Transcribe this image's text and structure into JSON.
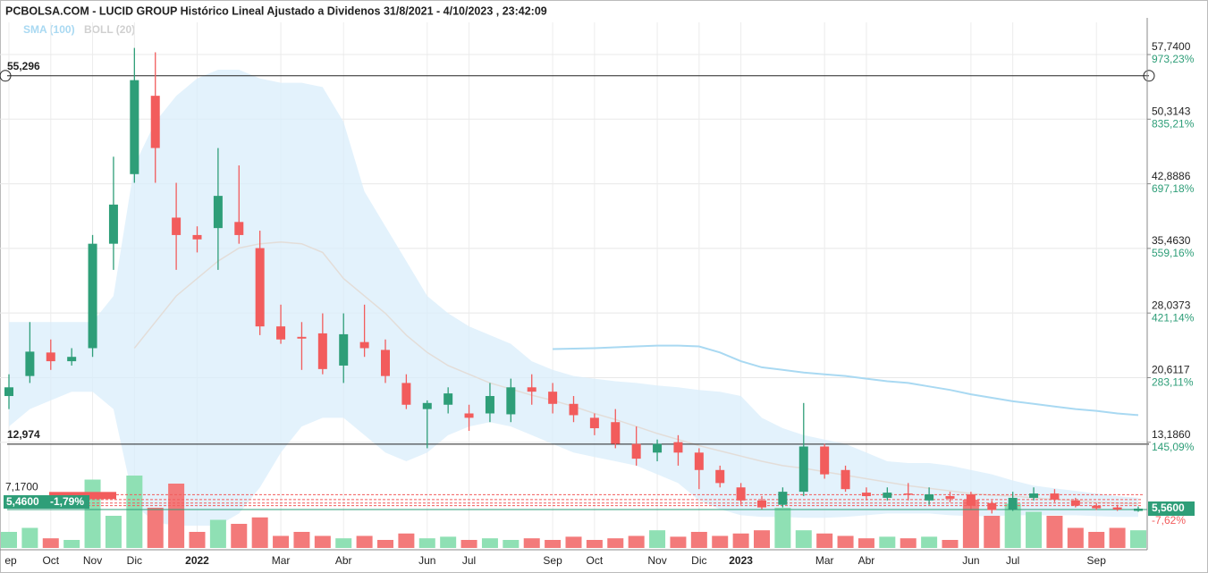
{
  "chart_data": {
    "type": "candlestick",
    "title": "PCBOLSA.COM - LUCID GROUP Histórico Lineal Ajustado a Dividenos 31/8/2021 - 4/10/2023 , 23:42:09",
    "categories": [
      "ep",
      null,
      "Oct",
      null,
      "Nov",
      null,
      "Dic",
      null,
      null,
      "2022",
      null,
      null,
      null,
      "Mar",
      null,
      null,
      "Abr",
      null,
      null,
      null,
      "Jun",
      null,
      "Jul",
      null,
      null,
      null,
      "Sep",
      null,
      "Oct",
      null,
      null,
      "Nov",
      null,
      "Dic",
      null,
      "2023",
      null,
      null,
      null,
      "Mar",
      null,
      "Abr",
      null,
      null,
      null,
      null,
      "Jun",
      null,
      "Jul",
      null,
      null,
      null,
      "Sep",
      null,
      null
    ],
    "open": [
      18.5,
      20.8,
      23.5,
      22.5,
      24,
      36,
      44,
      53,
      39,
      37,
      37.8,
      38.5,
      35.5,
      26.5,
      25.3,
      25.7,
      22,
      24.7,
      23.8,
      20,
      17,
      17.5,
      16.5,
      16.5,
      16.4,
      19.5,
      19,
      17.6,
      16,
      15.5,
      13,
      12,
      13.2,
      12,
      10,
      8,
      6.5,
      6,
      7.5,
      12.7,
      10,
      7.4,
      6.8,
      7.3,
      6.5,
      7,
      7.2,
      6.2,
      5.5,
      6.8,
      7.3,
      6.5,
      5.9,
      5.7,
      5.3
    ],
    "high": [
      21,
      27,
      25,
      24,
      37,
      46,
      58.5,
      58,
      43,
      38,
      47,
      45,
      37.5,
      29,
      27,
      28,
      28,
      29,
      25,
      21,
      18,
      19.5,
      17.5,
      20,
      20.5,
      21,
      20,
      18.5,
      16.5,
      17,
      15,
      13.5,
      14,
      12.5,
      10.5,
      8.5,
      7,
      8,
      17.7,
      13,
      10.5,
      8,
      8,
      8.5,
      8,
      7.5,
      7.5,
      6.5,
      7.5,
      8,
      7.8,
      6.8,
      6.2,
      6,
      5.8
    ],
    "low": [
      17,
      20,
      21.5,
      22,
      23,
      33,
      43,
      43,
      33,
      35,
      33,
      36,
      25.5,
      24.5,
      21.5,
      21,
      20,
      23,
      20,
      17,
      12.5,
      16.5,
      14.5,
      15.5,
      15.5,
      17.5,
      16.5,
      15.5,
      14,
      12.5,
      10.5,
      11,
      10.5,
      7.8,
      8,
      6,
      5.5,
      5.7,
      7,
      9,
      7.5,
      6.5,
      6.5,
      6.5,
      6,
      6.3,
      5.5,
      5,
      5.3,
      6.5,
      6.3,
      5.7,
      5.4,
      5.3,
      5.2
    ],
    "close": [
      19.5,
      23.6,
      22.5,
      23,
      36,
      40.5,
      54.8,
      47,
      37,
      36.5,
      41.5,
      37,
      26.5,
      25,
      25.1,
      21.6,
      25.6,
      24,
      20.8,
      17.5,
      17.7,
      18.8,
      16,
      18.5,
      19.5,
      19,
      17.6,
      16.3,
      14.8,
      13,
      11.3,
      13,
      12,
      10,
      8.5,
      6.5,
      5.7,
      7.5,
      12.7,
      9.5,
      7.8,
      7,
      7.4,
      7.2,
      7.2,
      6.7,
      5.9,
      5.4,
      6.8,
      7.3,
      6.6,
      5.9,
      5.6,
      5.46,
      5.56
    ],
    "volume": [
      20,
      25,
      12,
      10,
      85,
      40,
      90,
      50,
      80,
      20,
      35,
      30,
      38,
      15,
      20,
      15,
      12,
      15,
      10,
      18,
      12,
      14,
      10,
      12,
      10,
      12,
      10,
      14,
      10,
      12,
      15,
      22,
      14,
      20,
      15,
      18,
      22,
      50,
      22,
      18,
      15,
      12,
      14,
      12,
      14,
      10,
      60,
      40,
      55,
      45,
      40,
      25,
      20,
      25,
      22
    ],
    "up_color": "#2e9e78",
    "down_color": "#f25c5c",
    "volume_up_color": "#8fe0b4",
    "volume_down_color": "#f37a7a",
    "vlim": [
      0,
      100
    ],
    "sma": {
      "name": "SMA (100)",
      "color": "#a9d9f2",
      "values": [
        null,
        null,
        null,
        null,
        null,
        null,
        null,
        null,
        null,
        null,
        null,
        null,
        null,
        null,
        null,
        null,
        null,
        null,
        null,
        null,
        null,
        null,
        null,
        null,
        null,
        null,
        23.9,
        23.95,
        24,
        24.1,
        24.2,
        24.3,
        24.3,
        24.2,
        23.5,
        22.5,
        21.8,
        21.5,
        21.2,
        21,
        20.8,
        20.5,
        20.2,
        20,
        19.6,
        19.2,
        18.7,
        18.3,
        17.9,
        17.6,
        17.3,
        17,
        16.8,
        16.5,
        16.3
      ]
    },
    "bollinger": {
      "name": "BOLL (20)",
      "color": "#d9eefb",
      "upper": [
        27,
        27,
        27,
        27,
        27,
        30,
        45,
        50,
        53,
        55,
        56,
        56,
        55,
        54.5,
        54.5,
        54,
        50,
        42,
        38,
        34,
        30,
        28,
        26.5,
        25.5,
        24.5,
        22.5,
        21.5,
        20.8,
        20.5,
        20.2,
        20,
        19.7,
        19.5,
        19.2,
        19,
        18.5,
        16,
        14.8,
        14,
        13.5,
        13,
        12,
        11,
        10.8,
        10.8,
        10.5,
        10,
        9.5,
        8.8,
        8.2,
        7.9,
        7.6,
        7.3,
        7,
        6.8
      ],
      "middle": [
        null,
        null,
        null,
        null,
        null,
        null,
        24,
        27,
        30,
        32,
        34,
        35.5,
        36,
        36.2,
        36,
        35,
        32,
        30,
        28,
        25.5,
        23.5,
        22,
        21,
        20,
        19.3,
        18.6,
        18,
        17.3,
        16.5,
        15.8,
        15,
        14.2,
        13.5,
        12.8,
        12.2,
        11.6,
        11,
        10.5,
        10.2,
        9.8,
        9.4,
        9,
        8.6,
        8.2,
        7.9,
        7.6,
        7.3,
        7.1,
        7,
        6.8,
        6.6,
        6.5,
        6.3,
        6.2,
        6.1
      ],
      "lower": [
        15,
        17,
        18,
        19,
        19,
        17,
        6,
        4,
        3.6,
        3.6,
        3.6,
        5,
        8,
        12,
        15,
        16,
        16,
        14,
        12,
        11,
        12,
        14,
        15,
        15.5,
        15,
        14,
        13,
        12,
        11.5,
        11,
        10.5,
        9.5,
        8.5,
        6.5,
        5.5,
        4.8,
        4.6,
        4.6,
        4.5,
        4.5,
        4.6,
        4.8,
        5,
        5,
        5,
        4.8,
        4.7,
        4.7,
        4.8,
        4.8,
        4.8,
        4.8,
        4.7,
        4.6,
        4.6
      ]
    },
    "ylim": [
      1.04,
      61.44
    ],
    "yticks": [
      {
        "value": 57.74,
        "label": "57,7400"
      },
      {
        "value": 50.3143,
        "label": "50,3143"
      },
      {
        "value": 42.8886,
        "label": "42,8886"
      },
      {
        "value": 35.463,
        "label": "35,4630"
      },
      {
        "value": 28.0373,
        "label": "28,0373"
      },
      {
        "value": 20.6117,
        "label": "20,6117"
      },
      {
        "value": 13.186,
        "label": "13,1860"
      }
    ],
    "y2lim": [
      -80.67,
      1042.0
    ],
    "y2ticks": [
      {
        "value": 973.23,
        "label": "973,23%"
      },
      {
        "value": 835.21,
        "label": "835,21%"
      },
      {
        "value": 697.18,
        "label": "697,18%"
      },
      {
        "value": 559.16,
        "label": "559,16%"
      },
      {
        "value": 421.14,
        "label": "421,14%"
      },
      {
        "value": 283.11,
        "label": "283,11%"
      },
      {
        "value": 145.09,
        "label": "145,09%"
      }
    ],
    "y2_marker": {
      "value": -7.62,
      "label": "-7,62%"
    },
    "grid": true,
    "price_lines": [
      {
        "value": 55.296,
        "label": "55,296"
      },
      {
        "value": 12.974,
        "label": "12,974"
      }
    ],
    "alert_line": {
      "value": 7.17,
      "label": "7,1700"
    },
    "dashed_levels": [
      6.6,
      6.2,
      5.9
    ],
    "last_close": {
      "value": 5.56,
      "label": "5,5600"
    },
    "prev": {
      "value": 5.46,
      "label": "5,4600",
      "change": {
        "value": -1.79,
        "label": "-1,79%"
      }
    }
  }
}
